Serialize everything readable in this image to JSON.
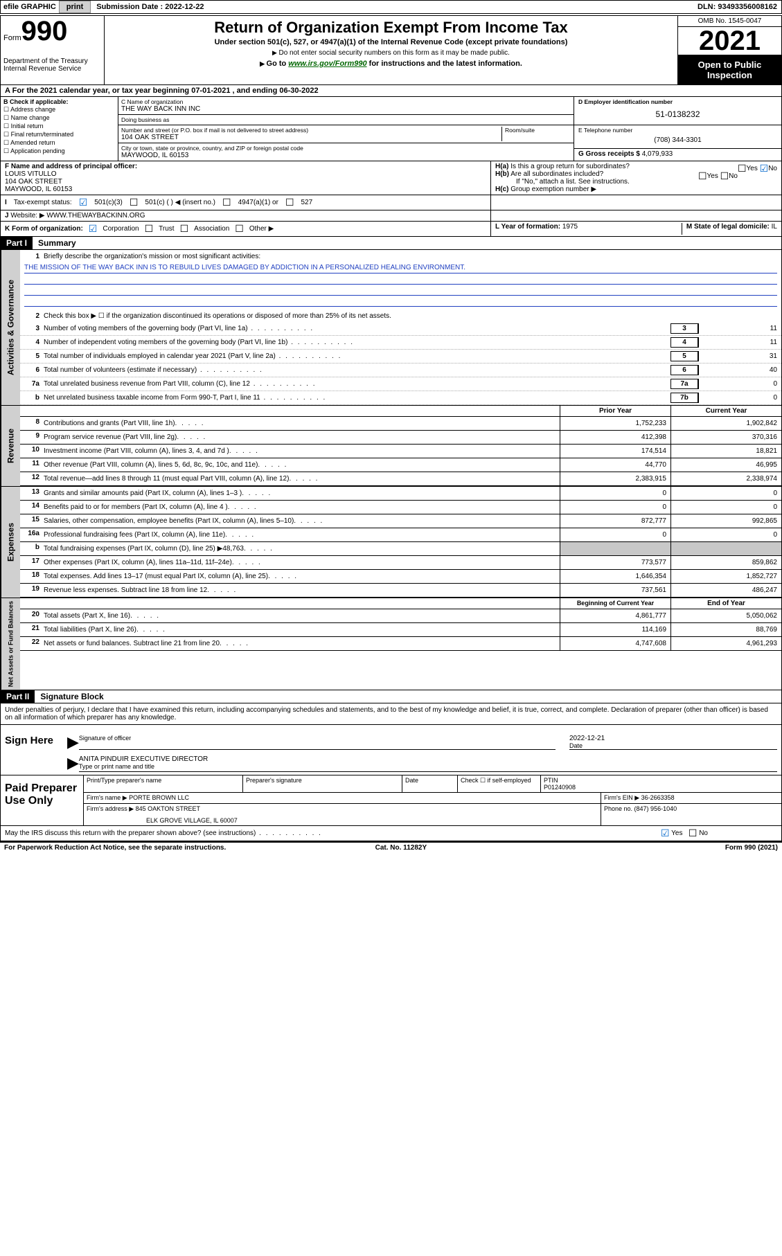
{
  "topbar": {
    "efile": "efile GRAPHIC",
    "print": "print",
    "sub_label": "Submission Date : ",
    "sub_date": "2022-12-22",
    "dln_label": "DLN: ",
    "dln": "93493356008162"
  },
  "header": {
    "form_word": "Form",
    "form_num": "990",
    "dept": "Department of the Treasury",
    "irs": "Internal Revenue Service",
    "title": "Return of Organization Exempt From Income Tax",
    "subtitle": "Under section 501(c), 527, or 4947(a)(1) of the Internal Revenue Code (except private foundations)",
    "line1": "Do not enter social security numbers on this form as it may be made public.",
    "line2a": "Go to ",
    "line2_link": "www.irs.gov/Form990",
    "line2b": " for instructions and the latest information.",
    "omb": "OMB No. 1545-0047",
    "year": "2021",
    "open": "Open to Public Inspection"
  },
  "period": "For the 2021 calendar year, or tax year beginning 07-01-2021    , and ending 06-30-2022",
  "colB": {
    "hdr": "B Check if applicable:",
    "opts": [
      "Address change",
      "Name change",
      "Initial return",
      "Final return/terminated",
      "Amended return",
      "Application pending"
    ]
  },
  "colC": {
    "name_lbl": "C Name of organization",
    "name": "THE WAY BACK INN INC",
    "dba_lbl": "Doing business as",
    "dba": "",
    "addr_lbl": "Number and street (or P.O. box if mail is not delivered to street address)",
    "room_lbl": "Room/suite",
    "addr": "104 OAK STREET",
    "city_lbl": "City or town, state or province, country, and ZIP or foreign postal code",
    "city": "MAYWOOD, IL  60153"
  },
  "colD": {
    "ein_lbl": "D Employer identification number",
    "ein": "51-0138232",
    "tel_lbl": "E Telephone number",
    "tel": "(708) 344-3301",
    "gross_lbl": "G Gross receipts $ ",
    "gross": "4,079,933"
  },
  "rowF": {
    "lbl": "F Name and address of principal officer:",
    "name": "LOUIS VITULLO",
    "addr1": "104 OAK STREET",
    "addr2": "MAYWOOD, IL  60153"
  },
  "rowH": {
    "ha": "Is this a group return for subordinates?",
    "hb": "Are all subordinates included?",
    "hb_note": "If \"No,\" attach a list. See instructions.",
    "hc": "Group exemption number ▶",
    "yes": "Yes",
    "no": "No"
  },
  "rowI": {
    "lbl": "Tax-exempt status:",
    "o1": "501(c)(3)",
    "o2": "501(c) (   ) ◀ (insert no.)",
    "o3": "4947(a)(1) or",
    "o4": "527"
  },
  "rowJ": {
    "lbl": "Website: ▶",
    "val": "WWW.THEWAYBACKINN.ORG"
  },
  "rowK": {
    "lbl": "K Form of organization:",
    "o1": "Corporation",
    "o2": "Trust",
    "o3": "Association",
    "o4": "Other ▶"
  },
  "rowL": {
    "lbl": "L Year of formation: ",
    "val": "1975"
  },
  "rowM": {
    "lbl": "M State of legal domicile: ",
    "val": "IL"
  },
  "part1": {
    "hdr": "Part I",
    "title": "Summary"
  },
  "gov": {
    "tab": "Activities & Governance",
    "l1_lbl": "Briefly describe the organization's mission or most significant activities:",
    "l1_txt": "THE MISSION OF THE WAY BACK INN IS TO REBUILD LIVES DAMAGED BY ADDICTION IN A PERSONALIZED HEALING ENVIRONMENT.",
    "l2": "Check this box ▶ ☐  if the organization discontinued its operations or disposed of more than 25% of its net assets.",
    "rows": [
      {
        "n": "3",
        "t": "Number of voting members of the governing body (Part VI, line 1a)",
        "box": "3",
        "v": "11"
      },
      {
        "n": "4",
        "t": "Number of independent voting members of the governing body (Part VI, line 1b)",
        "box": "4",
        "v": "11"
      },
      {
        "n": "5",
        "t": "Total number of individuals employed in calendar year 2021 (Part V, line 2a)",
        "box": "5",
        "v": "31"
      },
      {
        "n": "6",
        "t": "Total number of volunteers (estimate if necessary)",
        "box": "6",
        "v": "40"
      },
      {
        "n": "7a",
        "t": "Total unrelated business revenue from Part VIII, column (C), line 12",
        "box": "7a",
        "v": "0"
      },
      {
        "n": "b",
        "t": "Net unrelated business taxable income from Form 990-T, Part I, line 11",
        "box": "7b",
        "v": "0"
      }
    ]
  },
  "fin_hdr": {
    "c1": "Prior Year",
    "c2": "Current Year"
  },
  "revenue": {
    "tab": "Revenue",
    "rows": [
      {
        "n": "8",
        "t": "Contributions and grants (Part VIII, line 1h)",
        "c1": "1,752,233",
        "c2": "1,902,842"
      },
      {
        "n": "9",
        "t": "Program service revenue (Part VIII, line 2g)",
        "c1": "412,398",
        "c2": "370,316"
      },
      {
        "n": "10",
        "t": "Investment income (Part VIII, column (A), lines 3, 4, and 7d )",
        "c1": "174,514",
        "c2": "18,821"
      },
      {
        "n": "11",
        "t": "Other revenue (Part VIII, column (A), lines 5, 6d, 8c, 9c, 10c, and 11e)",
        "c1": "44,770",
        "c2": "46,995"
      },
      {
        "n": "12",
        "t": "Total revenue—add lines 8 through 11 (must equal Part VIII, column (A), line 12)",
        "c1": "2,383,915",
        "c2": "2,338,974"
      }
    ]
  },
  "expenses": {
    "tab": "Expenses",
    "rows": [
      {
        "n": "13",
        "t": "Grants and similar amounts paid (Part IX, column (A), lines 1–3 )",
        "c1": "0",
        "c2": "0"
      },
      {
        "n": "14",
        "t": "Benefits paid to or for members (Part IX, column (A), line 4 )",
        "c1": "0",
        "c2": "0"
      },
      {
        "n": "15",
        "t": "Salaries, other compensation, employee benefits (Part IX, column (A), lines 5–10)",
        "c1": "872,777",
        "c2": "992,865"
      },
      {
        "n": "16a",
        "t": "Professional fundraising fees (Part IX, column (A), line 11e)",
        "c1": "0",
        "c2": "0"
      },
      {
        "n": "b",
        "t": "Total fundraising expenses (Part IX, column (D), line 25) ▶48,763",
        "c1": "",
        "c2": "",
        "shaded": true
      },
      {
        "n": "17",
        "t": "Other expenses (Part IX, column (A), lines 11a–11d, 11f–24e)",
        "c1": "773,577",
        "c2": "859,862"
      },
      {
        "n": "18",
        "t": "Total expenses. Add lines 13–17 (must equal Part IX, column (A), line 25)",
        "c1": "1,646,354",
        "c2": "1,852,727"
      },
      {
        "n": "19",
        "t": "Revenue less expenses. Subtract line 18 from line 12",
        "c1": "737,561",
        "c2": "486,247"
      }
    ]
  },
  "net_hdr": {
    "c1": "Beginning of Current Year",
    "c2": "End of Year"
  },
  "net": {
    "tab": "Net Assets or Fund Balances",
    "rows": [
      {
        "n": "20",
        "t": "Total assets (Part X, line 16)",
        "c1": "4,861,777",
        "c2": "5,050,062"
      },
      {
        "n": "21",
        "t": "Total liabilities (Part X, line 26)",
        "c1": "114,169",
        "c2": "88,769"
      },
      {
        "n": "22",
        "t": "Net assets or fund balances. Subtract line 21 from line 20",
        "c1": "4,747,608",
        "c2": "4,961,293"
      }
    ]
  },
  "part2": {
    "hdr": "Part II",
    "title": "Signature Block"
  },
  "sig": {
    "intro": "Under penalties of perjury, I declare that I have examined this return, including accompanying schedules and statements, and to the best of my knowledge and belief, it is true, correct, and complete. Declaration of preparer (other than officer) is based on all information of which preparer has any knowledge.",
    "sign_here": "Sign Here",
    "sig_officer_lbl": "Signature of officer",
    "date_lbl": "Date",
    "date_val": "2022-12-21",
    "name": "ANITA PINDUIR  EXECUTIVE DIRECTOR",
    "name_lbl": "Type or print name and title"
  },
  "prep": {
    "lbl": "Paid Preparer Use Only",
    "h1": "Print/Type preparer's name",
    "h2": "Preparer's signature",
    "h3": "Date",
    "h4a": "Check ☐ if self-employed",
    "h4b_lbl": "PTIN",
    "h4b": "P01240908",
    "firm_name_lbl": "Firm's name    ▶ ",
    "firm_name": "PORTE BROWN LLC",
    "firm_ein_lbl": "Firm's EIN ▶ ",
    "firm_ein": "36-2663358",
    "firm_addr_lbl": "Firm's address ▶ ",
    "firm_addr1": "845 OAKTON STREET",
    "firm_addr2": "ELK GROVE VILLAGE, IL  60007",
    "phone_lbl": "Phone no. ",
    "phone": "(847) 956-1040"
  },
  "discuss": {
    "q": "May the IRS discuss this return with the preparer shown above? (see instructions)",
    "yes": "Yes",
    "no": "No"
  },
  "footer": {
    "left": "For Paperwork Reduction Act Notice, see the separate instructions.",
    "mid": "Cat. No. 11282Y",
    "right": "Form 990 (2021)"
  },
  "colors": {
    "link_green": "#006600",
    "check_blue": "#0066cc",
    "rule_blue": "#2040c0",
    "shade": "#c8c8c8",
    "tab_bg": "#d0d0d0"
  }
}
